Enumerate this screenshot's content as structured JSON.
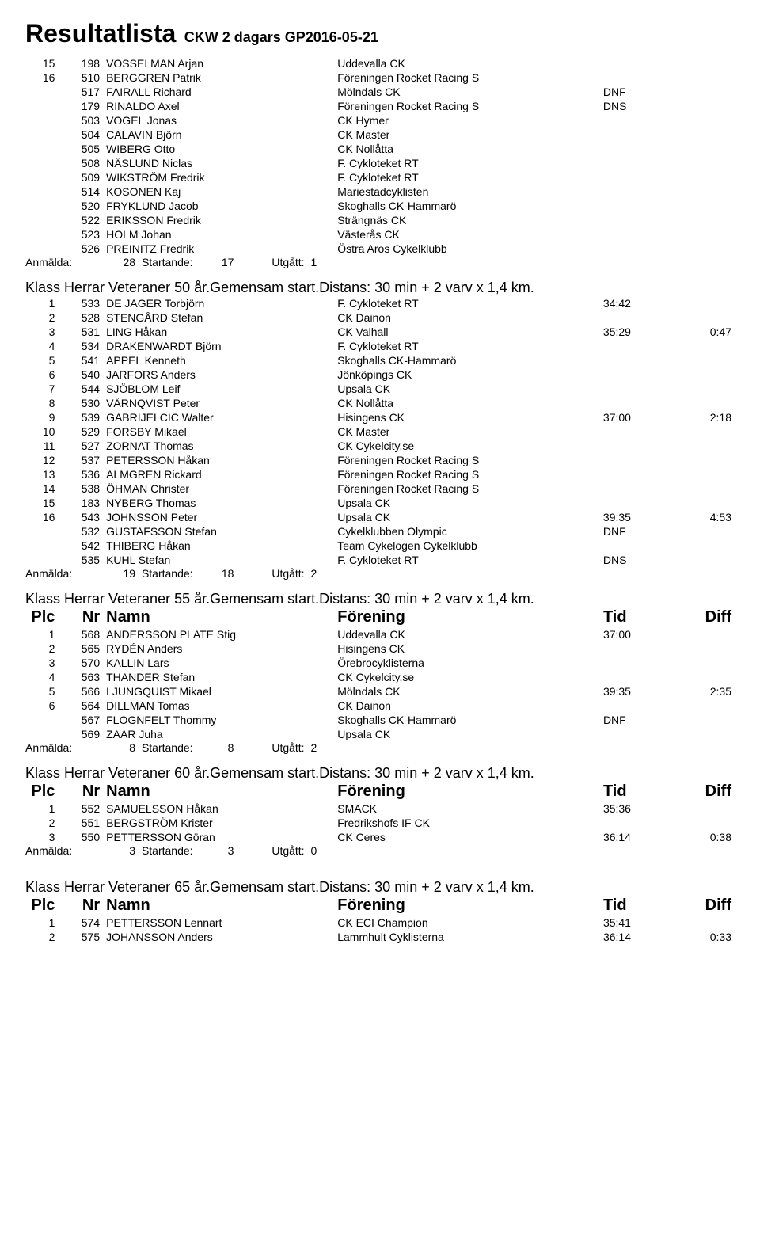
{
  "page_title_main": "Resultatlista",
  "page_title_sub": "CKW 2 dagars GP2016-05-21",
  "headers": {
    "plc": "Plc",
    "nr": "Nr",
    "namn": "Namn",
    "forening": "Förening",
    "tid": "Tid",
    "diff": "Diff"
  },
  "summary_labels": {
    "anmalda": "Anmälda:",
    "startande": "Startande:",
    "utgatt": "Utgått:"
  },
  "top_rows": [
    {
      "plc": "15",
      "nr": "198",
      "name": "VOSSELMAN Arjan",
      "club": "Uddevalla CK",
      "tid": "",
      "diff": ""
    },
    {
      "plc": "16",
      "nr": "510",
      "name": "BERGGREN Patrik",
      "club": "Föreningen Rocket Racing S",
      "tid": "",
      "diff": ""
    },
    {
      "plc": "",
      "nr": "517",
      "name": "FAIRALL Richard",
      "club": "Mölndals CK",
      "tid": "DNF",
      "diff": ""
    },
    {
      "plc": "",
      "nr": "179",
      "name": "RINALDO Axel",
      "club": "Föreningen Rocket Racing S",
      "tid": "DNS",
      "diff": ""
    },
    {
      "plc": "",
      "nr": "503",
      "name": "VOGEL Jonas",
      "club": "CK Hymer",
      "tid": "",
      "diff": ""
    },
    {
      "plc": "",
      "nr": "504",
      "name": "CALAVIN Björn",
      "club": "CK Master",
      "tid": "",
      "diff": ""
    },
    {
      "plc": "",
      "nr": "505",
      "name": "WIBERG Otto",
      "club": "CK Nollåtta",
      "tid": "",
      "diff": ""
    },
    {
      "plc": "",
      "nr": "508",
      "name": "NÄSLUND Niclas",
      "club": "F. Cykloteket RT",
      "tid": "",
      "diff": ""
    },
    {
      "plc": "",
      "nr": "509",
      "name": "WIKSTRÖM Fredrik",
      "club": "F. Cykloteket RT",
      "tid": "",
      "diff": ""
    },
    {
      "plc": "",
      "nr": "514",
      "name": "KOSONEN Kaj",
      "club": "Mariestadcyklisten",
      "tid": "",
      "diff": ""
    },
    {
      "plc": "",
      "nr": "520",
      "name": "FRYKLUND Jacob",
      "club": "Skoghalls CK-Hammarö",
      "tid": "",
      "diff": ""
    },
    {
      "plc": "",
      "nr": "522",
      "name": "ERIKSSON Fredrik",
      "club": "Strängnäs CK",
      "tid": "",
      "diff": ""
    },
    {
      "plc": "",
      "nr": "523",
      "name": "HOLM Johan",
      "club": "Västerås CK",
      "tid": "",
      "diff": ""
    },
    {
      "plc": "",
      "nr": "526",
      "name": "PREINITZ Fredrik",
      "club": "Östra Aros Cykelklubb",
      "tid": "",
      "diff": ""
    }
  ],
  "top_summary": {
    "anmalda": "28",
    "startande": "17",
    "utgatt": "1"
  },
  "sec50_title": "Klass Herrar Veteraner 50 år.Gemensam start.Distans: 30 min + 2 varv x 1,4 km.",
  "sec50_rows": [
    {
      "plc": "1",
      "nr": "533",
      "name": "DE JAGER Torbjörn",
      "club": "F. Cykloteket RT",
      "tid": "34:42",
      "diff": ""
    },
    {
      "plc": "2",
      "nr": "528",
      "name": "STENGÅRD Stefan",
      "club": "CK Dainon",
      "tid": "",
      "diff": ""
    },
    {
      "plc": "3",
      "nr": "531",
      "name": "LING Håkan",
      "club": "CK Valhall",
      "tid": "35:29",
      "diff": "0:47"
    },
    {
      "plc": "4",
      "nr": "534",
      "name": "DRAKENWARDT Björn",
      "club": "F. Cykloteket RT",
      "tid": "",
      "diff": ""
    },
    {
      "plc": "5",
      "nr": "541",
      "name": "APPEL Kenneth",
      "club": "Skoghalls CK-Hammarö",
      "tid": "",
      "diff": ""
    },
    {
      "plc": "6",
      "nr": "540",
      "name": "JARFORS Anders",
      "club": "Jönköpings CK",
      "tid": "",
      "diff": ""
    },
    {
      "plc": "7",
      "nr": "544",
      "name": "SJÖBLOM Leif",
      "club": "Upsala CK",
      "tid": "",
      "diff": ""
    },
    {
      "plc": "8",
      "nr": "530",
      "name": "VÄRNQVIST Peter",
      "club": "CK Nollåtta",
      "tid": "",
      "diff": ""
    },
    {
      "plc": "9",
      "nr": "539",
      "name": "GABRIJELCIC Walter",
      "club": "Hisingens CK",
      "tid": "37:00",
      "diff": "2:18"
    },
    {
      "plc": "10",
      "nr": "529",
      "name": "FORSBY Mikael",
      "club": "CK Master",
      "tid": "",
      "diff": ""
    },
    {
      "plc": "11",
      "nr": "527",
      "name": "ZORNAT Thomas",
      "club": "CK Cykelcity.se",
      "tid": "",
      "diff": ""
    },
    {
      "plc": "12",
      "nr": "537",
      "name": "PETERSSON Håkan",
      "club": "Föreningen Rocket Racing S",
      "tid": "",
      "diff": ""
    },
    {
      "plc": "13",
      "nr": "536",
      "name": "ALMGREN Rickard",
      "club": "Föreningen Rocket Racing S",
      "tid": "",
      "diff": ""
    },
    {
      "plc": "14",
      "nr": "538",
      "name": "ÖHMAN Christer",
      "club": "Föreningen Rocket Racing S",
      "tid": "",
      "diff": ""
    },
    {
      "plc": "15",
      "nr": "183",
      "name": "NYBERG Thomas",
      "club": "Upsala CK",
      "tid": "",
      "diff": ""
    },
    {
      "plc": "16",
      "nr": "543",
      "name": "JOHNSSON Peter",
      "club": "Upsala CK",
      "tid": "39:35",
      "diff": "4:53"
    },
    {
      "plc": "",
      "nr": "532",
      "name": "GUSTAFSSON Stefan",
      "club": "Cykelklubben Olympic",
      "tid": "DNF",
      "diff": ""
    },
    {
      "plc": "",
      "nr": "542",
      "name": "THIBERG Håkan",
      "club": "Team Cykelogen Cykelklubb",
      "tid": "",
      "diff": ""
    },
    {
      "plc": "",
      "nr": "535",
      "name": "KUHL Stefan",
      "club": "F. Cykloteket RT",
      "tid": "DNS",
      "diff": ""
    }
  ],
  "sec50_summary": {
    "anmalda": "19",
    "startande": "18",
    "utgatt": "2"
  },
  "sec55_title": "Klass Herrar Veteraner 55 år.Gemensam start.Distans: 30 min + 2 varv x 1,4 km.",
  "sec55_rows": [
    {
      "plc": "1",
      "nr": "568",
      "name": "ANDERSSON PLATE Stig",
      "club": "Uddevalla CK",
      "tid": "37:00",
      "diff": ""
    },
    {
      "plc": "2",
      "nr": "565",
      "name": "RYDÉN Anders",
      "club": "Hisingens CK",
      "tid": "",
      "diff": ""
    },
    {
      "plc": "3",
      "nr": "570",
      "name": "KALLIN Lars",
      "club": "Örebrocyklisterna",
      "tid": "",
      "diff": ""
    },
    {
      "plc": "4",
      "nr": "563",
      "name": "THANDER Stefan",
      "club": "CK Cykelcity.se",
      "tid": "",
      "diff": ""
    },
    {
      "plc": "5",
      "nr": "566",
      "name": "LJUNGQUIST Mikael",
      "club": "Mölndals CK",
      "tid": "39:35",
      "diff": "2:35"
    },
    {
      "plc": "6",
      "nr": "564",
      "name": "DILLMAN Tomas",
      "club": "CK Dainon",
      "tid": "",
      "diff": ""
    },
    {
      "plc": "",
      "nr": "567",
      "name": "FLOGNFELT Thommy",
      "club": "Skoghalls CK-Hammarö",
      "tid": "DNF",
      "diff": ""
    },
    {
      "plc": "",
      "nr": "569",
      "name": "ZAAR Juha",
      "club": "Upsala CK",
      "tid": "",
      "diff": ""
    }
  ],
  "sec55_summary": {
    "anmalda": "8",
    "startande": "8",
    "utgatt": "2"
  },
  "sec60_title": "Klass Herrar Veteraner 60 år.Gemensam start.Distans: 30 min + 2 varv x 1,4 km.",
  "sec60_rows": [
    {
      "plc": "1",
      "nr": "552",
      "name": "SAMUELSSON Håkan",
      "club": "SMACK",
      "tid": "35:36",
      "diff": ""
    },
    {
      "plc": "2",
      "nr": "551",
      "name": "BERGSTRÖM Krister",
      "club": "Fredrikshofs IF CK",
      "tid": "",
      "diff": ""
    },
    {
      "plc": "3",
      "nr": "550",
      "name": "PETTERSSON Göran",
      "club": "CK Ceres",
      "tid": "36:14",
      "diff": "0:38"
    }
  ],
  "sec60_summary": {
    "anmalda": "3",
    "startande": "3",
    "utgatt": "0"
  },
  "sec65_title": "Klass Herrar Veteraner 65 år.Gemensam start.Distans: 30 min + 2 varv x 1,4 km.",
  "sec65_rows": [
    {
      "plc": "1",
      "nr": "574",
      "name": "PETTERSSON Lennart",
      "club": "CK ECI Champion",
      "tid": "35:41",
      "diff": ""
    },
    {
      "plc": "2",
      "nr": "575",
      "name": "JOHANSSON Anders",
      "club": "Lammhult Cyklisterna",
      "tid": "36:14",
      "diff": "0:33"
    }
  ]
}
